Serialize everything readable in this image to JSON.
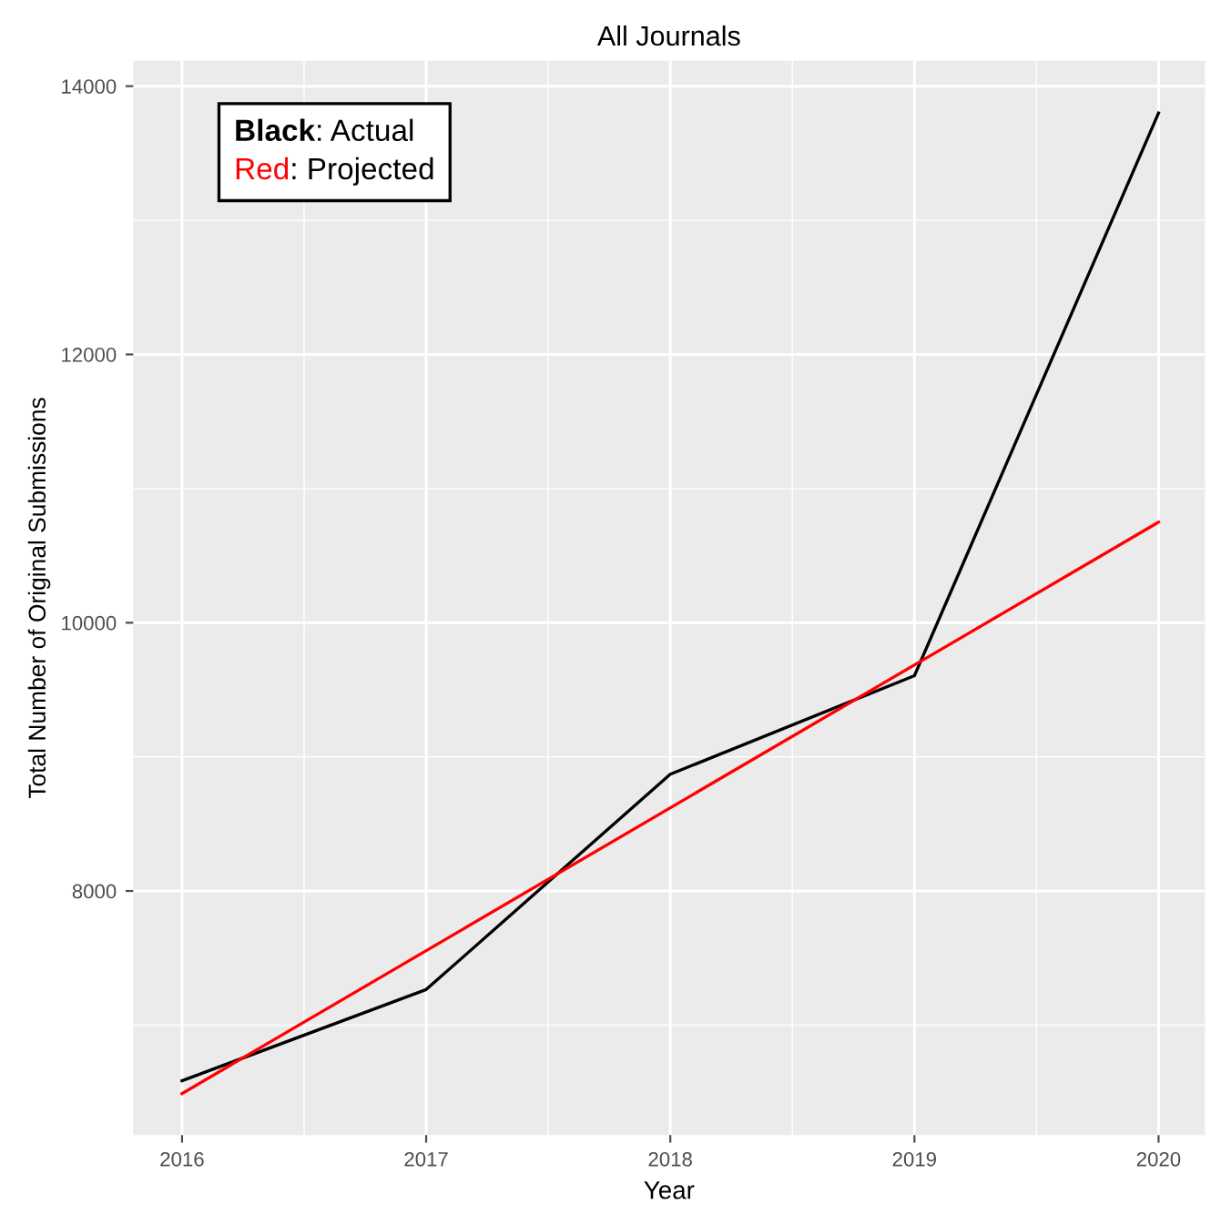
{
  "chart_data": {
    "type": "line",
    "title": "All Journals",
    "xlabel": "Year",
    "ylabel": "Total Number of Original Submissions",
    "x": [
      2016,
      2017,
      2018,
      2019,
      2020
    ],
    "series": [
      {
        "color": "#000000",
        "values": [
          6585,
          7265,
          8870,
          9605,
          13800
        ]
      },
      {
        "color": "#ff0000",
        "x": [
          2016,
          2020
        ],
        "values": [
          6490,
          10750
        ]
      }
    ],
    "annotations": [
      "Black: Actual",
      "Red: Projected"
    ],
    "xlim": [
      2015.8,
      2020.19
    ],
    "ylim": [
      6180,
      14190
    ],
    "xticks": [
      2016,
      2017,
      2018,
      2019,
      2020
    ],
    "yticks": [
      8000,
      10000,
      12000,
      14000
    ],
    "grid": true,
    "marker": "none",
    "line_style": "solid"
  }
}
